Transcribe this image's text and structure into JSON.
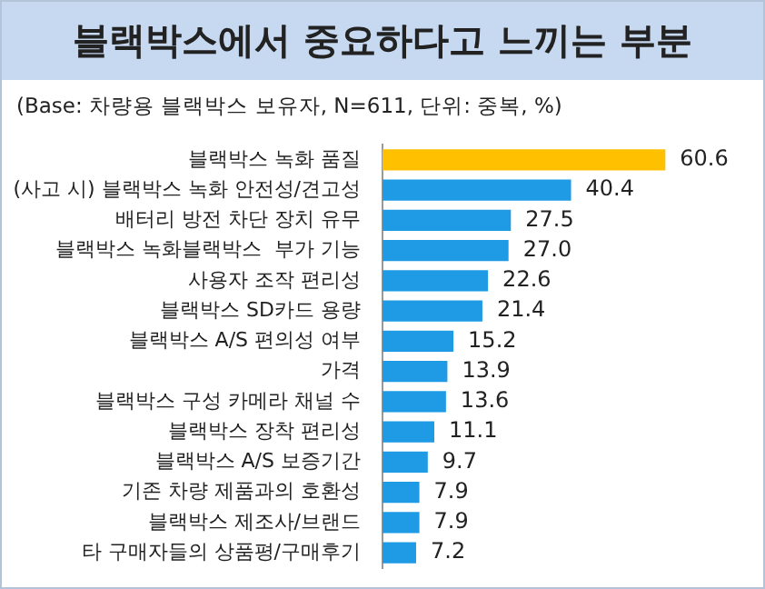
{
  "chart_data": {
    "type": "bar",
    "orientation": "horizontal",
    "title": "블랙박스에서 중요하다고 느끼는 부분",
    "subtitle": "(Base: 차량용 블랙박스 보유자, N=611, 단위: 중복, %)",
    "categories": [
      "블랙박스 녹화 품질",
      "(사고 시) 블랙박스 녹화 안전성/견고성",
      "배터리 방전 차단 장치 유무",
      "블랙박스 녹화블랙박스  부가 기능",
      "사용자 조작 편리성",
      "블랙박스 SD카드 용량",
      "블랙박스 A/S 편의성 여부",
      "가격",
      "블랙박스 구성 카메라 채널 수",
      "블랙박스 장착 편리성",
      "블랙박스 A/S 보증기간",
      "기존 차량 제품과의 호환성",
      "블랙박스 제조사/브랜드",
      "타 구매자들의 상품평/구매후기"
    ],
    "values": [
      60.6,
      40.4,
      27.5,
      27.0,
      22.6,
      21.4,
      15.2,
      13.9,
      13.6,
      11.1,
      9.7,
      7.9,
      7.9,
      7.2
    ],
    "colors": [
      "#ffc000",
      "#1f9be6",
      "#1f9be6",
      "#1f9be6",
      "#1f9be6",
      "#1f9be6",
      "#1f9be6",
      "#1f9be6",
      "#1f9be6",
      "#1f9be6",
      "#1f9be6",
      "#1f9be6",
      "#1f9be6",
      "#1f9be6"
    ],
    "value_labels": [
      "60.6",
      "40.4",
      "27.5",
      "27.0",
      "22.6",
      "21.4",
      "15.2",
      "13.9",
      "13.6",
      "11.1",
      "9.7",
      "7.9",
      "7.9",
      "7.2"
    ],
    "legend": false,
    "tick_labels": "y"
  }
}
